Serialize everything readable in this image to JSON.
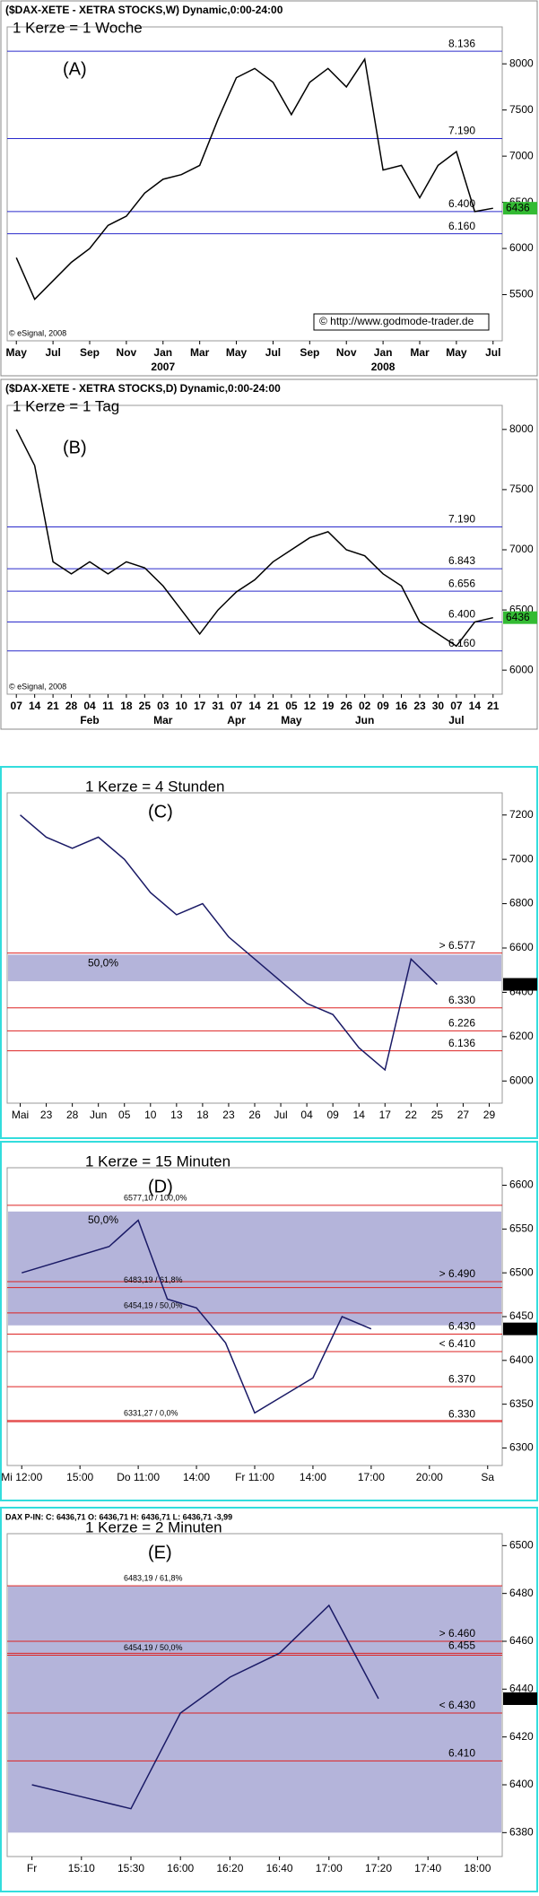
{
  "chart_data": [
    {
      "type": "line",
      "title": "($DAX-XETE - XETRA STOCKS,W) Dynamic,0:00-24:00",
      "subtitle": "1 Kerze = 1 Woche",
      "label": "(A)",
      "source": "© eSignal, 2008",
      "credit": "© http://www.godmode-trader.de",
      "categories": [
        "May",
        null,
        "Jul",
        null,
        "Sep",
        null,
        "Nov",
        null,
        "Jan",
        null,
        "Mar",
        null,
        "May",
        null,
        "Jul",
        null,
        "Sep",
        null,
        "Nov",
        null,
        "Jan",
        null,
        "Mar",
        null,
        "May",
        null,
        "Jul"
      ],
      "x_groups": [
        null,
        null,
        null,
        null,
        null,
        null,
        null,
        null,
        "2007",
        null,
        null,
        null,
        null,
        null,
        null,
        null,
        null,
        null,
        null,
        null,
        "2008",
        null,
        null,
        null,
        null,
        null,
        null
      ],
      "values": [
        5900,
        5450,
        5650,
        5850,
        6000,
        6250,
        6350,
        6600,
        6750,
        6800,
        6900,
        7400,
        7850,
        7950,
        7800,
        7450,
        7800,
        7950,
        7750,
        8050,
        6850,
        6900,
        6550,
        6900,
        7050,
        6400,
        6436
      ],
      "color": "#000000",
      "ylim": [
        5000,
        8400
      ],
      "yticks": [
        5500,
        6000,
        6500,
        7000,
        7500,
        8000
      ],
      "levels": [
        {
          "value": 8136,
          "label": "8.136"
        },
        {
          "value": 7190,
          "label": "7.190"
        },
        {
          "value": 6400,
          "label": "6.400"
        },
        {
          "value": 6160,
          "label": "6.160"
        }
      ],
      "level_color": "#2a2acc",
      "last": 6436
    },
    {
      "type": "line",
      "title": "($DAX-XETE - XETRA STOCKS,D) Dynamic,0:00-24:00",
      "subtitle": "1 Kerze = 1 Tag",
      "label": "(B)",
      "source": "© eSignal, 2008",
      "categories": [
        "07",
        "14",
        "21",
        "28",
        "04",
        "11",
        "18",
        "25",
        "03",
        "10",
        "17",
        "31",
        "07",
        "14",
        "21",
        "05",
        "12",
        "19",
        "26",
        "02",
        "09",
        "16",
        "23",
        "30",
        "07",
        "14",
        "21"
      ],
      "x_groups": [
        null,
        null,
        null,
        null,
        "Feb",
        null,
        null,
        null,
        "Mar",
        null,
        null,
        null,
        "Apr",
        null,
        null,
        "May",
        null,
        null,
        null,
        "Jun",
        null,
        null,
        null,
        null,
        "Jul",
        null,
        null
      ],
      "values": [
        8000,
        7700,
        6900,
        6800,
        6900,
        6800,
        6900,
        6850,
        6700,
        6500,
        6300,
        6500,
        6650,
        6750,
        6900,
        7000,
        7100,
        7150,
        7000,
        6950,
        6800,
        6700,
        6400,
        6300,
        6200,
        6400,
        6436
      ],
      "color": "#000000",
      "ylim": [
        5800,
        8200
      ],
      "yticks": [
        6000,
        6500,
        7000,
        7500,
        8000
      ],
      "levels": [
        {
          "value": 7190,
          "label": "7.190"
        },
        {
          "value": 6843,
          "label": "6.843"
        },
        {
          "value": 6656,
          "label": "6.656"
        },
        {
          "value": 6400,
          "label": "6.400"
        },
        {
          "value": 6160,
          "label": "6.160"
        }
      ],
      "level_color": "#2a2acc",
      "last": 6436
    },
    {
      "type": "line",
      "subtitle": "1 Kerze = 4 Stunden",
      "label": "(C)",
      "categories": [
        "Mai",
        "23",
        "28",
        "Jun",
        "05",
        "10",
        "13",
        "18",
        "23",
        "26",
        "Jul",
        "04",
        "09",
        "14",
        "17",
        "22",
        "25",
        "27",
        "29"
      ],
      "values": [
        7200,
        7100,
        7050,
        7100,
        7000,
        6850,
        6750,
        6800,
        6650,
        6550,
        6450,
        6350,
        6300,
        6150,
        6050,
        6550,
        6436,
        null,
        null
      ],
      "color": "#1a1a66",
      "ylim": [
        5900,
        7300
      ],
      "yticks": [
        6000,
        6200,
        6400,
        6600,
        6800,
        7000,
        7200
      ],
      "band": {
        "from": 6450,
        "to": 6570,
        "label": "50,0%"
      },
      "levels": [
        {
          "value": 6577,
          "label": "> 6.577"
        },
        {
          "value": 6330,
          "label": "6.330"
        },
        {
          "value": 6226,
          "label": "6.226"
        },
        {
          "value": 6136,
          "label": "6.136"
        }
      ],
      "level_color": "#dd2222",
      "last": 6436
    },
    {
      "type": "line",
      "subtitle": "1 Kerze = 15 Minuten",
      "label": "(D)",
      "categories": [
        "Mi 12:00",
        null,
        "15:00",
        null,
        "Do 11:00",
        null,
        "14:00",
        null,
        "Fr 11:00",
        null,
        "14:00",
        null,
        "17:00",
        null,
        "20:00",
        null,
        "Sa"
      ],
      "values": [
        6500,
        6510,
        6520,
        6530,
        6560,
        6470,
        6460,
        6420,
        6340,
        6360,
        6380,
        6450,
        6436,
        null,
        null,
        null,
        null
      ],
      "color": "#1a1a66",
      "ylim": [
        6280,
        6620
      ],
      "yticks": [
        6300,
        6350,
        6400,
        6450,
        6500,
        6550,
        6600
      ],
      "band": {
        "from": 6440,
        "to": 6570,
        "label": "50,0%"
      },
      "levels": [
        {
          "value": 6577.1,
          "label": "6577,10 / 100,0%"
        },
        {
          "value": 6490,
          "label": "> 6.490"
        },
        {
          "value": 6483.19,
          "label": "6483,19 / 61,8%"
        },
        {
          "value": 6454.19,
          "label": "6454,19 / 50,0%"
        },
        {
          "value": 6430,
          "label": "6.430"
        },
        {
          "value": 6410,
          "label": "< 6.410"
        },
        {
          "value": 6370,
          "label": "6.370"
        },
        {
          "value": 6330,
          "label": "6.330"
        },
        {
          "value": 6331.27,
          "label": "6331,27 / 0,0%"
        }
      ],
      "level_color": "#dd2222",
      "last": 6436
    },
    {
      "type": "line",
      "title": "DAX P-IN: C: 6436,71 O: 6436,71 H: 6436,71 L: 6436,71 -3,99",
      "subtitle": "1 Kerze = 2 Minuten",
      "label": "(E)",
      "categories": [
        "Fr",
        "15:10",
        "15:30",
        "16:00",
        "16:20",
        "16:40",
        "17:00",
        "17:20",
        "17:40",
        "18:00"
      ],
      "values": [
        6400,
        6395,
        6390,
        6430,
        6445,
        6455,
        6475,
        6436,
        null,
        null
      ],
      "color": "#1a1a66",
      "ylim": [
        6370,
        6505
      ],
      "yticks": [
        6380,
        6400,
        6420,
        6440,
        6460,
        6480,
        6500
      ],
      "band": {
        "from": 6380,
        "to": 6483
      },
      "levels": [
        {
          "value": 6483.19,
          "label": "6483,19 / 61,8%"
        },
        {
          "value": 6460,
          "label": "> 6.460"
        },
        {
          "value": 6455,
          "label": "6.455"
        },
        {
          "value": 6454.19,
          "label": "6454,19 / 50,0%"
        },
        {
          "value": 6430,
          "label": "< 6.430"
        },
        {
          "value": 6410,
          "label": "6.410"
        }
      ],
      "level_color": "#dd2222",
      "last": 6436
    }
  ]
}
